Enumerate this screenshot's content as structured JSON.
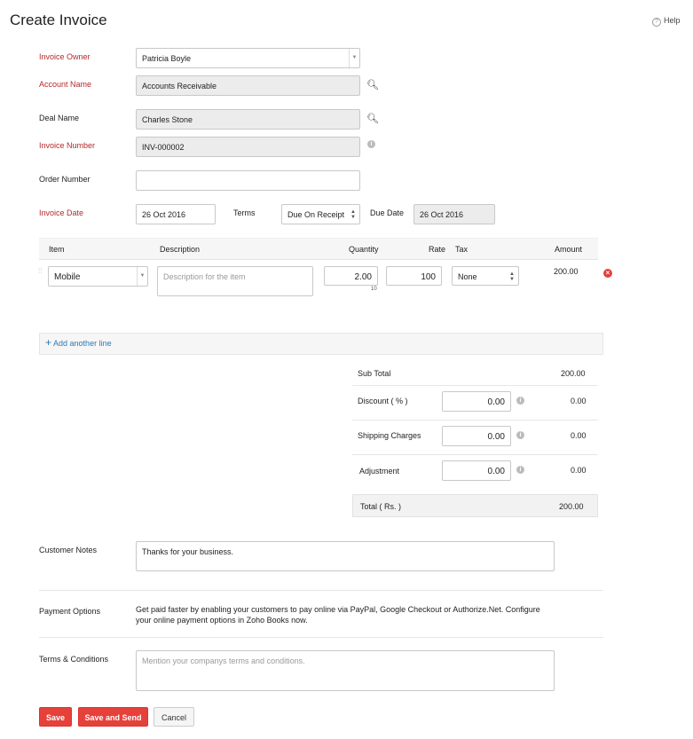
{
  "title": "Create Invoice",
  "help": "Help",
  "fields": {
    "owner_label": "Invoice Owner",
    "owner": "Patricia Boyle",
    "account_label": "Account Name",
    "account": "Accounts Receivable",
    "deal_label": "Deal Name",
    "deal": "Charles Stone",
    "number_label": "Invoice Number",
    "number": "INV-000002",
    "order_label": "Order Number",
    "order": "",
    "date_label": "Invoice Date",
    "date": "26 Oct 2016",
    "terms_label": "Terms",
    "terms": "Due On Receipt",
    "due_label": "Due Date",
    "due": "26 Oct 2016"
  },
  "items": {
    "headers": [
      "Item",
      "Description",
      "Quantity",
      "Rate",
      "Tax",
      "Amount"
    ],
    "rows": [
      {
        "item": "Mobile",
        "description_placeholder": "Description for the item",
        "quantity": "2.00",
        "stock": "10",
        "rate": "100",
        "tax": "None",
        "amount": "200.00"
      }
    ],
    "add_line": "Add another line"
  },
  "totals": {
    "sub_total_label": "Sub Total",
    "sub_total": "200.00",
    "discount_label": "Discount ( % )",
    "discount_input": "0.00",
    "discount": "0.00",
    "shipping_label": "Shipping Charges",
    "shipping_input": "0.00",
    "shipping": "0.00",
    "adjustment_label": "Adjustment",
    "adjustment_input": "0.00",
    "adjustment": "0.00",
    "total_label": "Total ( Rs. )",
    "total": "200.00"
  },
  "notes": {
    "label": "Customer Notes",
    "value": "Thanks for your business."
  },
  "payment": {
    "label": "Payment Options",
    "line1": "Get paid faster by enabling your customers to pay online via PayPal, Google Checkout or Authorize.Net. Configure",
    "line2": "your online payment options in Zoho Books now."
  },
  "terms": {
    "label": "Terms & Conditions",
    "placeholder": "Mention your companys terms and conditions."
  },
  "buttons": {
    "save": "Save",
    "save_send": "Save and Send",
    "cancel": "Cancel"
  },
  "colors": {
    "required": "#b5292b",
    "primary": "#e5413a",
    "link": "#2a7ab8"
  }
}
